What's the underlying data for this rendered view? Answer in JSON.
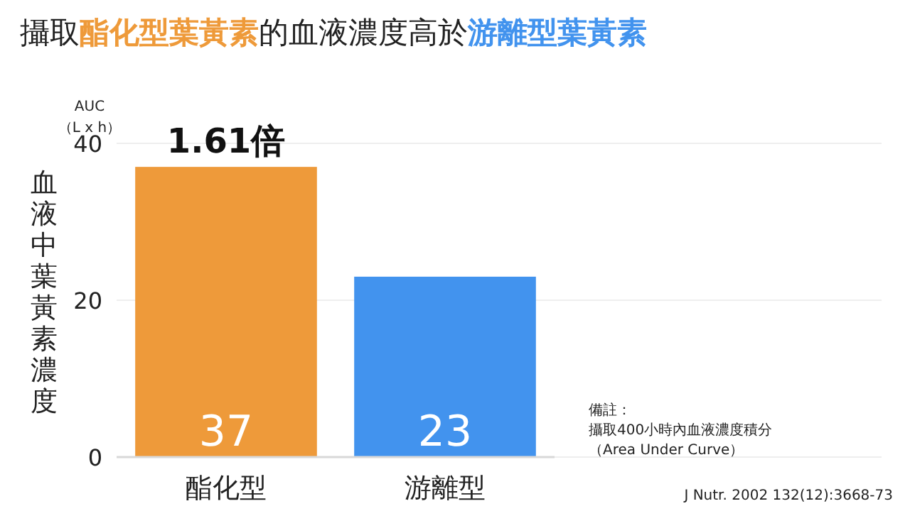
{
  "chart_data": {
    "type": "bar",
    "title": "攝取**酯化型葉黃素**的血液濃度高於**游離型葉黃素**",
    "ylabel": "血液中葉黃素濃度",
    "categories": [
      "酯化型",
      "游離型"
    ],
    "values": [
      37,
      23
    ],
    "colors": [
      "#ee9a3a",
      "#4293ee"
    ],
    "ylim": [
      0,
      40
    ],
    "yticks": [
      0,
      20,
      40
    ],
    "grid": "y",
    "data_labels": true,
    "annotations": [
      {
        "text": "1.61倍",
        "x": "酯化型",
        "y": 37
      },
      "AUC",
      "（L x h）",
      "備註：",
      "攝取400小時內血液濃度積分",
      "（Area Under Curve）",
      "J Nutr. 2002 132(12):3668-73"
    ]
  }
}
